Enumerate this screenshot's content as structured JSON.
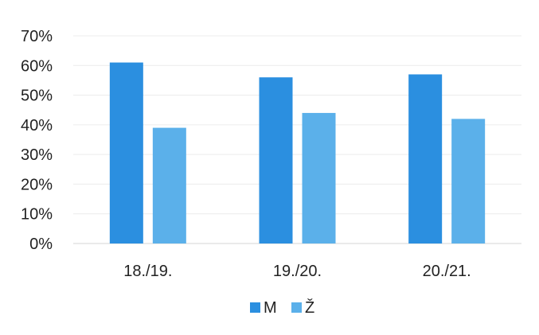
{
  "chart_data": {
    "type": "bar",
    "categories": [
      "18./19.",
      "19./20.",
      "20./21."
    ],
    "series": [
      {
        "name": "M",
        "values": [
          61,
          56,
          57
        ],
        "color": "#2b8fe0"
      },
      {
        "name": "Ž",
        "values": [
          39,
          44,
          42
        ],
        "color": "#5bb0ea"
      }
    ],
    "y_ticks": [
      "0%",
      "10%",
      "20%",
      "30%",
      "40%",
      "50%",
      "60%",
      "70%"
    ],
    "ylim": [
      0,
      70
    ],
    "y_unit": "%",
    "grid": true,
    "legend": "bottom-center",
    "title": "",
    "xlabel": "",
    "ylabel": ""
  }
}
